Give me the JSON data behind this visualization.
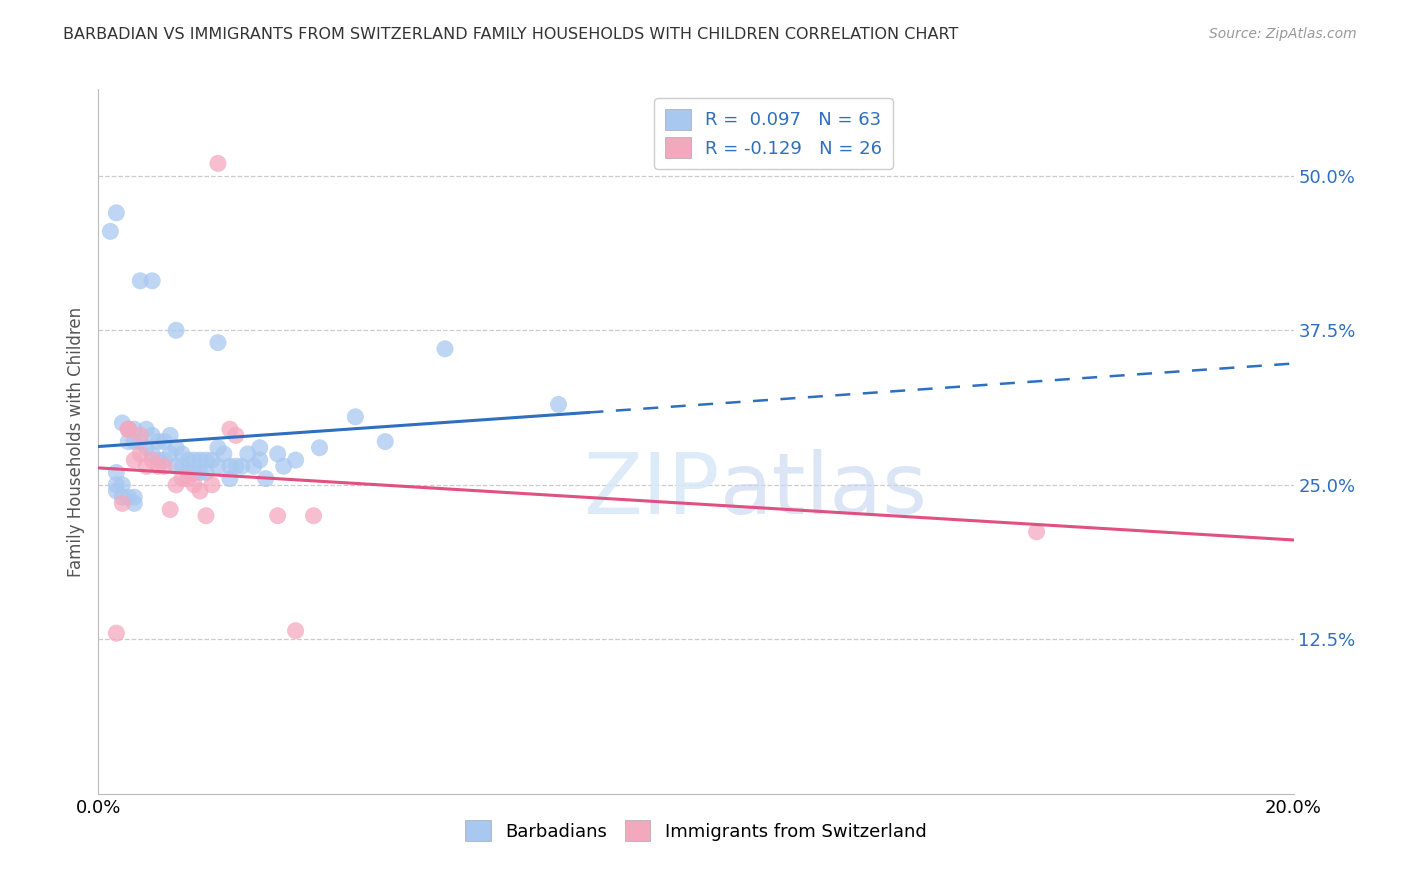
{
  "title": "BARBADIAN VS IMMIGRANTS FROM SWITZERLAND FAMILY HOUSEHOLDS WITH CHILDREN CORRELATION CHART",
  "source": "Source: ZipAtlas.com",
  "ylabel": "Family Households with Children",
  "xlim": [
    0.0,
    0.2
  ],
  "ylim": [
    0.0,
    0.57
  ],
  "ytick_positions": [
    0.125,
    0.25,
    0.375,
    0.5
  ],
  "ytick_labels": [
    "12.5%",
    "25.0%",
    "37.5%",
    "50.0%"
  ],
  "blue_R": 0.097,
  "blue_N": 63,
  "pink_R": -0.129,
  "pink_N": 26,
  "blue_color": "#A8C8F0",
  "pink_color": "#F4A8BE",
  "blue_line_color": "#2E6FBF",
  "pink_line_color": "#E05080",
  "grid_color": "#CCCCCC",
  "blue_x": [
    0.002,
    0.003,
    0.007,
    0.009,
    0.013,
    0.02,
    0.004,
    0.005,
    0.005,
    0.006,
    0.006,
    0.007,
    0.008,
    0.008,
    0.009,
    0.009,
    0.01,
    0.01,
    0.011,
    0.011,
    0.012,
    0.012,
    0.013,
    0.013,
    0.014,
    0.014,
    0.015,
    0.015,
    0.016,
    0.016,
    0.017,
    0.017,
    0.018,
    0.018,
    0.019,
    0.02,
    0.02,
    0.021,
    0.022,
    0.022,
    0.023,
    0.024,
    0.025,
    0.026,
    0.027,
    0.027,
    0.028,
    0.03,
    0.031,
    0.033,
    0.037,
    0.043,
    0.048,
    0.058,
    0.077,
    0.003,
    0.003,
    0.003,
    0.004,
    0.004,
    0.005,
    0.006,
    0.006
  ],
  "blue_y": [
    0.455,
    0.47,
    0.415,
    0.415,
    0.375,
    0.365,
    0.3,
    0.295,
    0.285,
    0.295,
    0.285,
    0.285,
    0.295,
    0.28,
    0.29,
    0.275,
    0.285,
    0.27,
    0.285,
    0.27,
    0.29,
    0.275,
    0.28,
    0.265,
    0.275,
    0.265,
    0.27,
    0.26,
    0.27,
    0.26,
    0.27,
    0.26,
    0.27,
    0.26,
    0.27,
    0.28,
    0.265,
    0.275,
    0.265,
    0.255,
    0.265,
    0.265,
    0.275,
    0.265,
    0.28,
    0.27,
    0.255,
    0.275,
    0.265,
    0.27,
    0.28,
    0.305,
    0.285,
    0.36,
    0.315,
    0.26,
    0.25,
    0.245,
    0.25,
    0.24,
    0.24,
    0.24,
    0.235
  ],
  "pink_x": [
    0.02,
    0.003,
    0.004,
    0.005,
    0.005,
    0.006,
    0.007,
    0.007,
    0.008,
    0.009,
    0.01,
    0.011,
    0.012,
    0.013,
    0.014,
    0.015,
    0.016,
    0.017,
    0.018,
    0.019,
    0.022,
    0.023,
    0.03,
    0.033,
    0.036,
    0.157
  ],
  "pink_y": [
    0.51,
    0.13,
    0.235,
    0.295,
    0.295,
    0.27,
    0.29,
    0.275,
    0.265,
    0.27,
    0.265,
    0.265,
    0.23,
    0.25,
    0.255,
    0.255,
    0.25,
    0.245,
    0.225,
    0.25,
    0.295,
    0.29,
    0.225,
    0.132,
    0.225,
    0.212
  ],
  "blue_line_start_x": 0.0,
  "blue_line_solid_end_x": 0.082,
  "blue_line_end_x": 0.2,
  "pink_line_start_x": 0.0,
  "pink_line_end_x": 0.2
}
